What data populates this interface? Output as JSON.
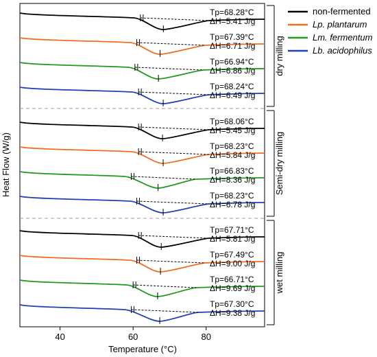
{
  "chart_data": {
    "type": "line",
    "xlabel": "Temperature (°C)",
    "ylabel": "Heat Flow (W/g)",
    "xlim": [
      29,
      96
    ],
    "x_ticks": [
      40,
      60,
      80
    ],
    "legend_position": "top-right",
    "series_styles": [
      {
        "name": "non-fermented",
        "color": "#000000",
        "italic": false
      },
      {
        "name": "Lp. plantarum",
        "color": "#f26b21",
        "italic": true
      },
      {
        "name": "Lm. fermentum",
        "color": "#1f9a1f",
        "italic": true
      },
      {
        "name": "Lb. acidophilus",
        "color": "#1f3fb6",
        "italic": true
      }
    ],
    "panels": [
      {
        "label": "dry milling",
        "curves": [
          {
            "series": "non-fermented",
            "tp": "Tp=68.28°C",
            "dh": "ΔH=5.41 J/g",
            "peak_temperature": 68.28,
            "enthalpy": 5.41,
            "onset": 62.0,
            "endset": 80.0
          },
          {
            "series": "Lp. plantarum",
            "tp": "Tp=67.39°C",
            "dh": "ΔH=6.71 J/g",
            "peak_temperature": 67.39,
            "enthalpy": 6.71,
            "onset": 61.0,
            "endset": 79.0
          },
          {
            "series": "Lm. fermentum",
            "tp": "Tp=66.94°C",
            "dh": "ΔH=6.86 J/g",
            "peak_temperature": 66.94,
            "enthalpy": 6.86,
            "onset": 60.5,
            "endset": 78.5
          },
          {
            "series": "Lb. acidophilus",
            "tp": "Tp=68.24°C",
            "dh": "ΔH=6.49 J/g",
            "peak_temperature": 68.24,
            "enthalpy": 6.49,
            "onset": 61.5,
            "endset": 80.0
          }
        ]
      },
      {
        "label": "Semi-dry milling",
        "curves": [
          {
            "series": "non-fermented",
            "tp": "Tp=68.06°C",
            "dh": "ΔH=5.45 J/g",
            "peak_temperature": 68.06,
            "enthalpy": 5.45,
            "onset": 61.5,
            "endset": 80.0
          },
          {
            "series": "Lp. plantarum",
            "tp": "Tp=68.23°C",
            "dh": "ΔH=5.84 J/g",
            "peak_temperature": 68.23,
            "enthalpy": 5.84,
            "onset": 61.5,
            "endset": 80.0
          },
          {
            "series": "Lm. fermentum",
            "tp": "Tp=66.83°C",
            "dh": "ΔH=8.36 J/g",
            "peak_temperature": 66.83,
            "enthalpy": 8.36,
            "onset": 59.5,
            "endset": 76.5
          },
          {
            "series": "Lb. acidophilus",
            "tp": "Tp=68.23°C",
            "dh": "ΔH=6.78 J/g",
            "peak_temperature": 68.23,
            "enthalpy": 6.78,
            "onset": 61.0,
            "endset": 80.0
          }
        ]
      },
      {
        "label": "wet milling",
        "curves": [
          {
            "series": "non-fermented",
            "tp": "Tp=67.71°C",
            "dh": "ΔH=5.81 J/g",
            "peak_temperature": 67.71,
            "enthalpy": 5.81,
            "onset": 61.5,
            "endset": 80.0
          },
          {
            "series": "Lp. plantarum",
            "tp": "Tp=67.49°C",
            "dh": "ΔH=9.00 J/g",
            "peak_temperature": 67.49,
            "enthalpy": 9.0,
            "onset": 61.0,
            "endset": 79.0
          },
          {
            "series": "Lm. fermentum",
            "tp": "Tp=66.71°C",
            "dh": "ΔH=9.69 J/g",
            "peak_temperature": 66.71,
            "enthalpy": 9.69,
            "onset": 60.0,
            "endset": 76.5
          },
          {
            "series": "Lb. acidophilus",
            "tp": "Tp=67.30°C",
            "dh": "ΔH=9.38 J/g",
            "peak_temperature": 67.3,
            "enthalpy": 9.38,
            "onset": 59.5,
            "endset": 77.0
          }
        ]
      }
    ]
  }
}
